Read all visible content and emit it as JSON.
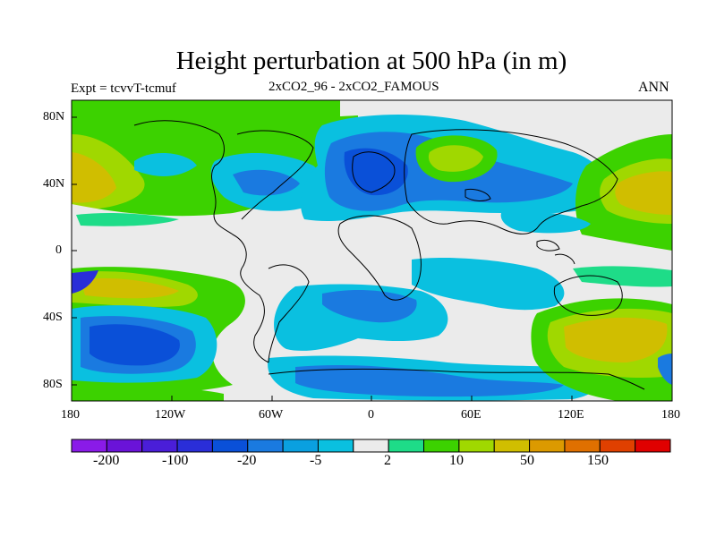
{
  "title": "Height perturbation at 500 hPa (in m)",
  "subtitle": "2xCO2_96 - 2xCO2_FAMOUS",
  "expt_label": "Expt = tcvvT-tcmuf",
  "season": "ANN",
  "lat_ticks": [
    "80N",
    "40N",
    "0",
    "40S",
    "80S"
  ],
  "lon_ticks": [
    "180",
    "120W",
    "60W",
    "0",
    "60E",
    "120E",
    "180"
  ],
  "colorbar": {
    "colors": [
      "#8A1BE8",
      "#6A13D8",
      "#4A1ED8",
      "#2A2ED8",
      "#0A50D8",
      "#1A7AE0",
      "#0AA0E0",
      "#0AC0E0",
      "#EBEBEB",
      "#1EDC88",
      "#3CD200",
      "#A0D800",
      "#D0BE00",
      "#DC9A00",
      "#E07000",
      "#E04000",
      "#E00000"
    ],
    "labels": [
      "-200",
      "-100",
      "-20",
      "-5",
      "2",
      "10",
      "50",
      "150"
    ]
  },
  "colors": {
    "ocean_neutral": "#EBEBEB",
    "coast": "#000000"
  }
}
